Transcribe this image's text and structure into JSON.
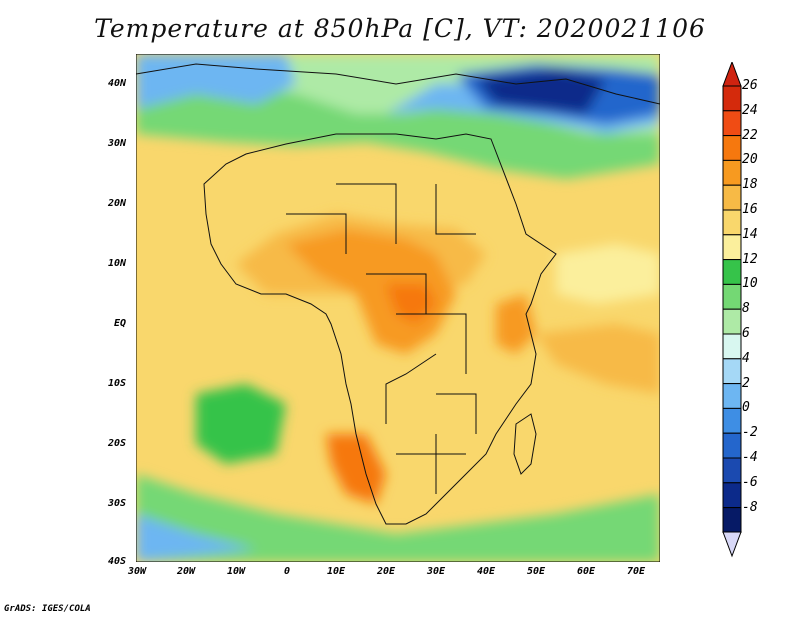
{
  "title": "Temperature at 850hPa [C], VT: 2020021106",
  "credit": "GrADS: IGES/COLA",
  "map": {
    "lat_labels": [
      "40N",
      "30N",
      "20N",
      "10N",
      "EQ",
      "10S",
      "20S",
      "30S",
      "40S"
    ],
    "lon_labels": [
      "30W",
      "20W",
      "10W",
      "0",
      "10E",
      "20E",
      "30E",
      "40E",
      "50E",
      "60E",
      "70E"
    ]
  },
  "colorbar": {
    "labels": [
      "26",
      "24",
      "22",
      "20",
      "18",
      "16",
      "14",
      "12",
      "10",
      "8",
      "6",
      "4",
      "2",
      "0",
      "-2",
      "-4",
      "-6",
      "-8"
    ],
    "colors": [
      "#d42a0c",
      "#f04c14",
      "#f6780e",
      "#f79a20",
      "#f7ba46",
      "#f9d76c",
      "#fbef9c",
      "#36c34a",
      "#74d874",
      "#aeeaa6",
      "#d8f7f0",
      "#a5d8f6",
      "#6db6f2",
      "#3e8ee4",
      "#2466cc",
      "#1b4ab0",
      "#0c2a8a",
      "#061a66"
    ],
    "top_triangle_color": "#cf2310",
    "bottom_triangle_color": "#d8d8f7"
  }
}
